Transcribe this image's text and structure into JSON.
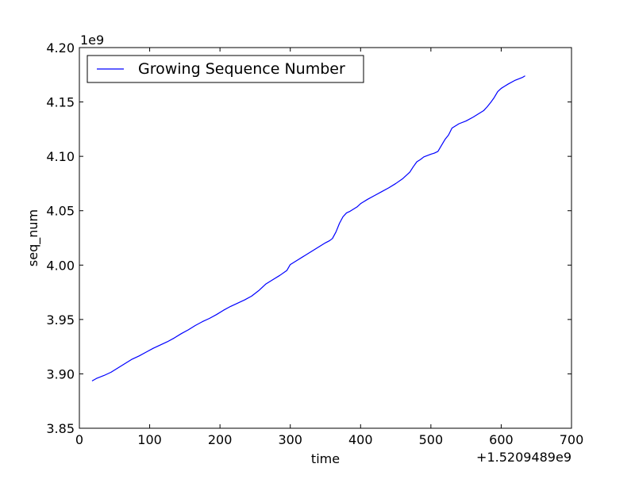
{
  "chart_data": {
    "type": "line",
    "xlabel": "time",
    "ylabel": "seq_num",
    "x_offset_label": "+1.5209489e9",
    "y_multiplier_label": "1e9",
    "xlim": [
      0,
      700
    ],
    "ylim": [
      3.85,
      4.2
    ],
    "x_ticks": [
      0,
      100,
      200,
      300,
      400,
      500,
      600,
      700
    ],
    "y_ticks": [
      3.85,
      3.9,
      3.95,
      4.0,
      4.05,
      4.1,
      4.15,
      4.2
    ],
    "x_tick_labels": [
      "0",
      "100",
      "200",
      "300",
      "400",
      "500",
      "600",
      "700"
    ],
    "y_tick_labels": [
      "3.85",
      "3.90",
      "3.95",
      "4.00",
      "4.05",
      "4.10",
      "4.15",
      "4.20"
    ],
    "grid": false,
    "legend": {
      "position": "top-left"
    },
    "line_color": "#0000ff",
    "series": [
      {
        "name": "Growing Sequence Number",
        "x": [
          18,
          25,
          35,
          45,
          55,
          65,
          75,
          85,
          95,
          105,
          115,
          125,
          135,
          145,
          155,
          165,
          175,
          185,
          195,
          205,
          215,
          225,
          235,
          245,
          255,
          265,
          275,
          285,
          295,
          300,
          310,
          320,
          330,
          340,
          350,
          356,
          360,
          365,
          370,
          375,
          380,
          385,
          390,
          395,
          400,
          410,
          420,
          430,
          440,
          450,
          460,
          470,
          475,
          480,
          485,
          490,
          500,
          505,
          510,
          515,
          520,
          525,
          530,
          540,
          550,
          560,
          570,
          575,
          580,
          585,
          590,
          595,
          600,
          610,
          620,
          630,
          634
        ],
        "y": [
          3.8935,
          3.896,
          3.8985,
          3.9015,
          3.9055,
          3.9095,
          3.9135,
          3.9165,
          3.92,
          3.9235,
          3.9265,
          3.9295,
          3.933,
          3.937,
          3.9405,
          3.9445,
          3.948,
          3.951,
          3.9545,
          3.9585,
          3.962,
          3.965,
          3.968,
          3.9715,
          3.9765,
          3.9825,
          3.9865,
          3.9905,
          3.995,
          4.0005,
          4.0045,
          4.0085,
          4.0125,
          4.0165,
          4.0205,
          4.0225,
          4.0245,
          4.0305,
          4.0385,
          4.0445,
          4.048,
          4.0495,
          4.0515,
          4.0535,
          4.0565,
          4.0605,
          4.064,
          4.0675,
          4.071,
          4.075,
          4.0795,
          4.0855,
          4.0905,
          4.095,
          4.097,
          4.0995,
          4.102,
          4.103,
          4.1045,
          4.11,
          4.1155,
          4.1195,
          4.126,
          4.13,
          4.1325,
          4.136,
          4.14,
          4.142,
          4.1455,
          4.1495,
          4.154,
          4.1595,
          4.1625,
          4.1665,
          4.17,
          4.1725,
          4.174
        ]
      }
    ]
  }
}
